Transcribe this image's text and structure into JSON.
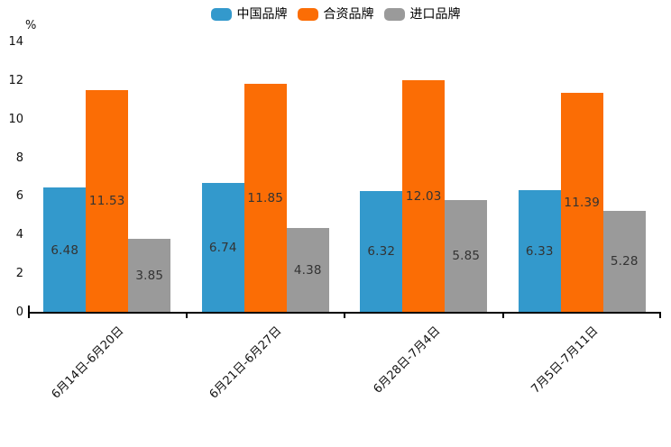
{
  "chart_data": {
    "type": "bar",
    "unit_label": "%",
    "categories": [
      "6月14日-6月20日",
      "6月21日-6月27日",
      "6月28日-7月4日",
      "7月5日-7月11日"
    ],
    "series": [
      {
        "name": "中国品牌",
        "color": "#3399CC",
        "values": [
          6.48,
          6.74,
          6.32,
          6.33
        ]
      },
      {
        "name": "合资品牌",
        "color": "#FB6D05",
        "values": [
          11.53,
          11.85,
          12.03,
          11.39
        ]
      },
      {
        "name": "进口品牌",
        "color": "#9A9A9A",
        "values": [
          3.85,
          4.38,
          5.85,
          5.28
        ]
      }
    ],
    "ylim": [
      0,
      14
    ],
    "yticks": [
      0,
      2,
      4,
      6,
      8,
      10,
      12,
      14
    ],
    "grid": false,
    "legend_position": "top",
    "value_label_decimals": 2,
    "axis_color": "#000000"
  }
}
